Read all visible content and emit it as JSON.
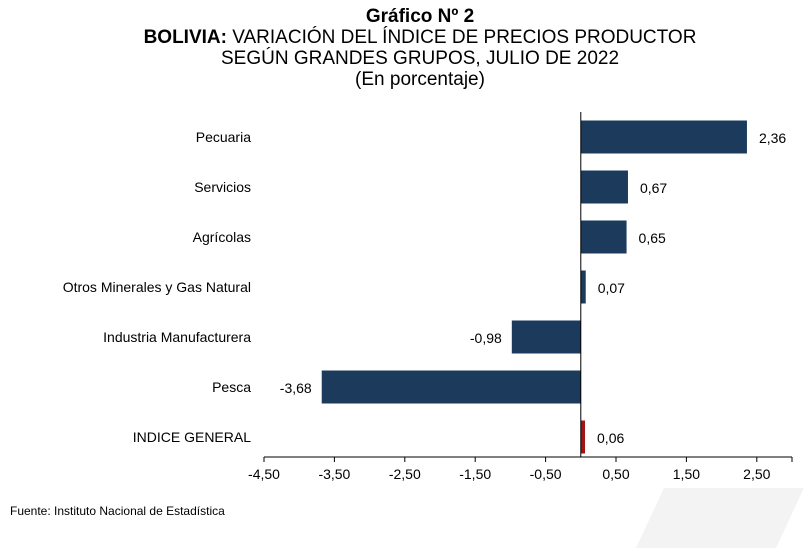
{
  "header": {
    "chart_number": "Gráfico Nº 2",
    "title_bold": "BOLIVIA:",
    "title_rest": " VARIACIÓN DEL ÍNDICE DE PRECIOS PRODUCTOR",
    "subtitle": "SEGÚN GRANDES GRUPOS, JULIO DE 2022",
    "unit": "(En porcentaje)"
  },
  "source": "Fuente: Instituto Nacional de Estadística",
  "colors": {
    "bar": "#1b3a5c",
    "highlight": "#a01515"
  },
  "chart_data": {
    "type": "bar",
    "orientation": "horizontal",
    "categories": [
      "Pecuaria",
      "Servicios",
      "Agrícolas",
      "Otros Minerales y Gas Natural",
      "Industria Manufacturera",
      "Pesca",
      "INDICE GENERAL"
    ],
    "values": [
      2.36,
      0.67,
      0.65,
      0.07,
      -0.98,
      -3.68,
      0.06
    ],
    "value_labels": [
      "2,36",
      "0,67",
      "0,65",
      "0,07",
      "-0,98",
      "-3,68",
      "0,06"
    ],
    "highlight_index": 6,
    "xlim": [
      -4.5,
      3.0
    ],
    "xticks": [
      -4.5,
      -3.5,
      -2.5,
      -1.5,
      -0.5,
      0.5,
      1.5,
      2.5
    ],
    "xtick_labels": [
      "-4,50",
      "-3,50",
      "-2,50",
      "-1,50",
      "-0,50",
      "0,50",
      "1,50",
      "2,50"
    ],
    "grid": false
  }
}
